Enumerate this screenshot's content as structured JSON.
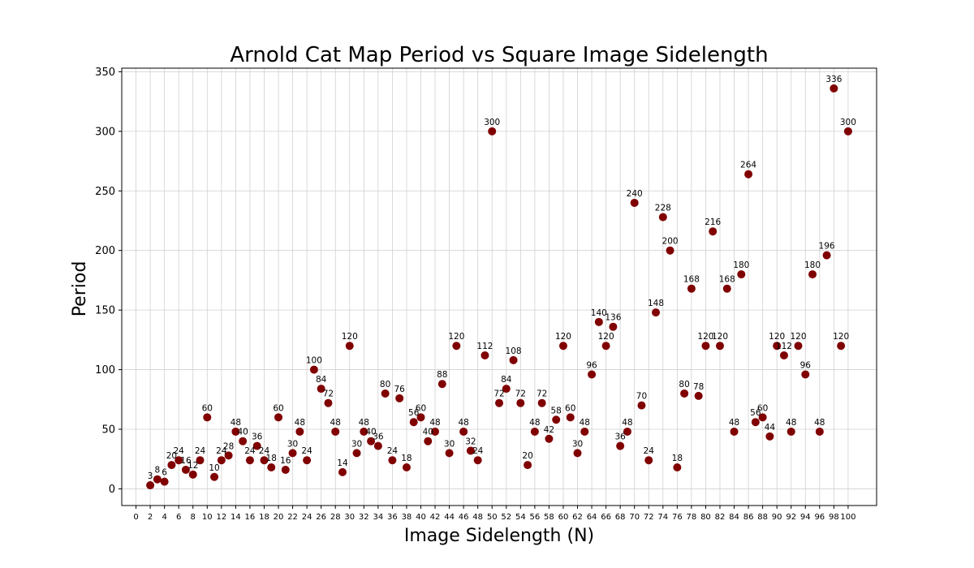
{
  "chart_data": {
    "type": "scatter",
    "title": "Arnold Cat Map Period vs Square Image Sidelength",
    "xlabel": "Image Sidelength (N)",
    "ylabel": "Period",
    "xlim": [
      -2,
      104
    ],
    "ylim": [
      -14,
      353
    ],
    "xticks": [
      0,
      2,
      4,
      6,
      8,
      10,
      12,
      14,
      16,
      18,
      20,
      22,
      24,
      26,
      28,
      30,
      32,
      34,
      36,
      38,
      40,
      42,
      44,
      46,
      48,
      50,
      52,
      54,
      56,
      58,
      60,
      62,
      64,
      66,
      68,
      70,
      72,
      74,
      76,
      78,
      80,
      82,
      84,
      86,
      88,
      90,
      92,
      94,
      96,
      98,
      100
    ],
    "yticks": [
      0,
      50,
      100,
      150,
      200,
      250,
      300,
      350
    ],
    "grid": true,
    "marker_color": "#800000",
    "x": [
      2,
      3,
      4,
      5,
      6,
      7,
      8,
      9,
      10,
      11,
      12,
      13,
      14,
      15,
      16,
      17,
      18,
      19,
      20,
      21,
      22,
      23,
      24,
      25,
      26,
      27,
      28,
      29,
      30,
      31,
      32,
      33,
      34,
      35,
      36,
      37,
      38,
      39,
      40,
      41,
      42,
      43,
      44,
      45,
      46,
      47,
      48,
      49,
      50,
      51,
      52,
      53,
      54,
      55,
      56,
      57,
      58,
      59,
      60,
      61,
      62,
      63,
      64,
      65,
      66,
      67,
      68,
      69,
      70,
      71,
      72,
      73,
      74,
      75,
      76,
      77,
      78,
      79,
      80,
      81,
      82,
      83,
      84,
      85,
      86,
      87,
      88,
      89,
      90,
      91,
      92,
      93,
      94,
      95,
      96,
      97,
      98,
      99,
      100
    ],
    "y": [
      3,
      8,
      6,
      20,
      24,
      16,
      12,
      24,
      60,
      10,
      24,
      28,
      48,
      40,
      24,
      36,
      24,
      18,
      60,
      16,
      30,
      48,
      24,
      100,
      84,
      72,
      48,
      14,
      120,
      30,
      48,
      40,
      36,
      80,
      24,
      76,
      18,
      56,
      60,
      40,
      48,
      88,
      30,
      120,
      48,
      32,
      24,
      112,
      300,
      72,
      84,
      108,
      72,
      20,
      48,
      72,
      42,
      58,
      120,
      60,
      30,
      48,
      96,
      140,
      120,
      136,
      36,
      48,
      240,
      70,
      24,
      148,
      228,
      200,
      18,
      80,
      168,
      78,
      120,
      216,
      120,
      168,
      48,
      180,
      264,
      56,
      60,
      44,
      120,
      112,
      48,
      120,
      96,
      180,
      48,
      196,
      336,
      120,
      300
    ]
  }
}
